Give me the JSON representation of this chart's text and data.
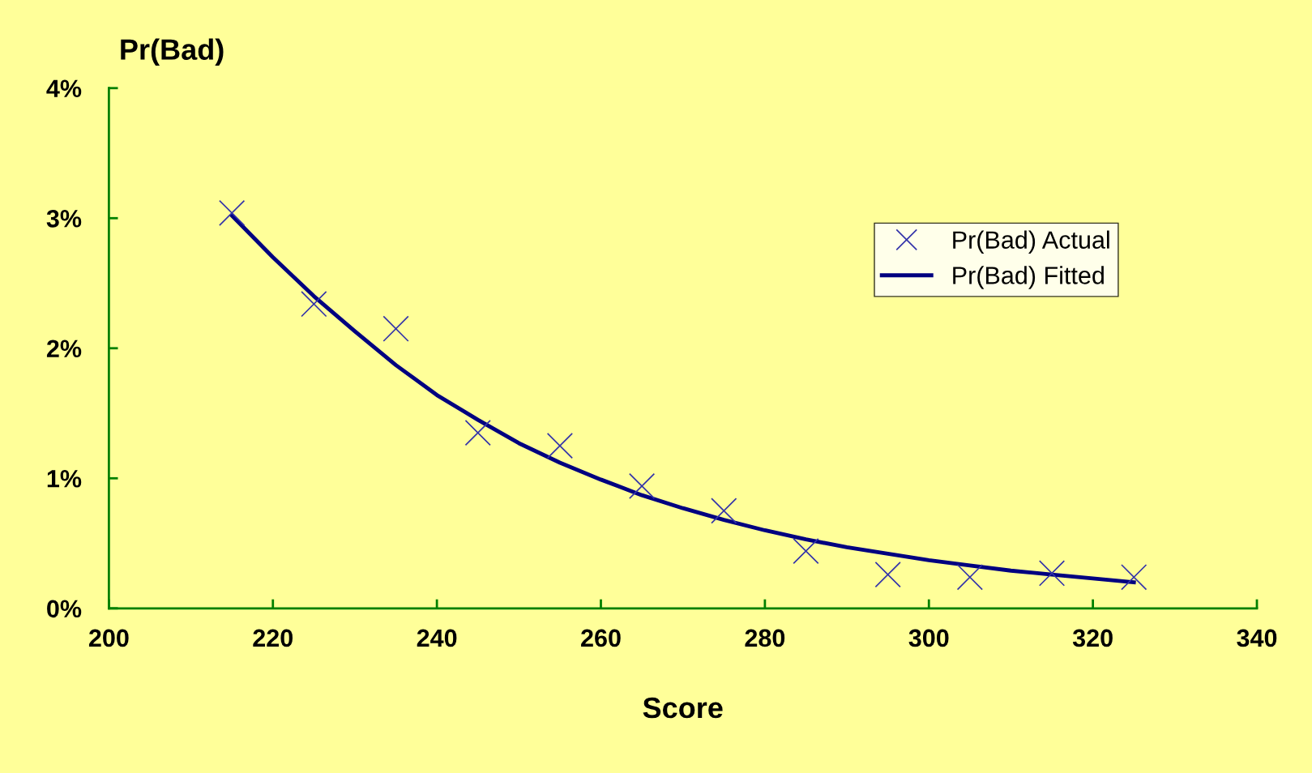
{
  "chart_data": {
    "type": "scatter",
    "xlabel": "Score",
    "ylabel": "Pr(Bad)",
    "xlim": [
      200,
      340
    ],
    "xticks": [
      200,
      220,
      240,
      260,
      280,
      300,
      320,
      340
    ],
    "ylim": [
      0,
      4
    ],
    "yticks": [
      {
        "value": 0,
        "label": "0%"
      },
      {
        "value": 1,
        "label": "1%"
      },
      {
        "value": 2,
        "label": "2%"
      },
      {
        "value": 3,
        "label": "3%"
      },
      {
        "value": 4,
        "label": "4%"
      }
    ],
    "grid": false,
    "legend": "right",
    "series": [
      {
        "name": "Pr(Bad) Actual",
        "type": "scatter",
        "marker": "cross",
        "color": "#3333aa",
        "x": [
          215,
          225,
          235,
          245,
          255,
          265,
          275,
          285,
          295,
          305,
          315,
          325
        ],
        "values": [
          3.04,
          2.34,
          2.15,
          1.35,
          1.25,
          0.94,
          0.75,
          0.44,
          0.26,
          0.24,
          0.27,
          0.24
        ]
      },
      {
        "name": "Pr(Bad) Fitted",
        "type": "line",
        "marker": "none",
        "line_style": "solid",
        "color": "#000080",
        "x": [
          215,
          220,
          225,
          230,
          235,
          240,
          245,
          250,
          255,
          260,
          265,
          270,
          275,
          280,
          285,
          290,
          295,
          300,
          305,
          310,
          315,
          320,
          325
        ],
        "values": [
          3.02,
          2.7,
          2.4,
          2.13,
          1.87,
          1.64,
          1.45,
          1.27,
          1.12,
          0.99,
          0.87,
          0.77,
          0.68,
          0.6,
          0.53,
          0.47,
          0.42,
          0.37,
          0.33,
          0.29,
          0.26,
          0.23,
          0.2
        ]
      }
    ]
  }
}
